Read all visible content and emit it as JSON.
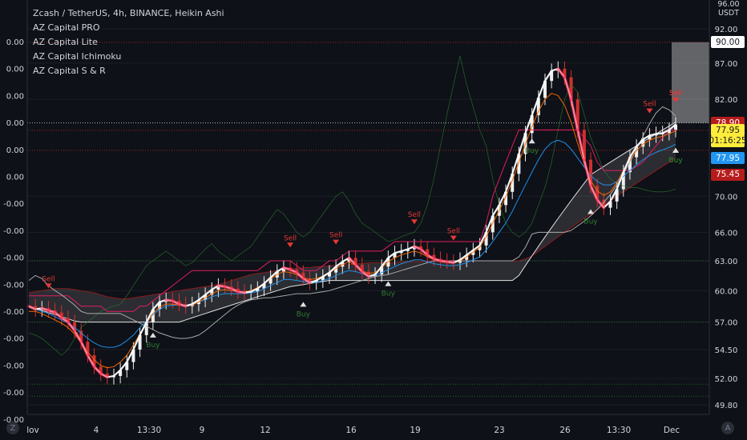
{
  "legend": {
    "title": "Zcash / TetherUS, 4h, BINANCE, Heikin Ashi",
    "indicators": [
      "AZ Capital PRO",
      "AZ Capital Lite",
      "AZ Capital Ichimoku",
      "AZ Capital S & R"
    ]
  },
  "price_unit": "USDT",
  "corner_buttons": {
    "left": "Z",
    "right": "A"
  },
  "price_tags": [
    {
      "label": "90.00",
      "value": 90.0,
      "bg": "#ffffff",
      "fg": "#131722"
    },
    {
      "label": "78.90",
      "value": 78.9,
      "bg": "#b71c1c",
      "fg": "#ffffff"
    },
    {
      "label": "77.95",
      "value": 77.95,
      "bg": "#ffeb3b",
      "fg": "#131722"
    },
    {
      "label": "01:16:25",
      "value": 76.6,
      "bg": "#ffeb3b",
      "fg": "#131722"
    },
    {
      "label": "77.95",
      "value": 74.5,
      "bg": "#2196f3",
      "fg": "#ffffff"
    },
    {
      "label": "75.45",
      "value": 72.5,
      "bg": "#b71c1c",
      "fg": "#ffffff"
    }
  ],
  "chart_data": {
    "type": "line",
    "title": "Zcash / TetherUS, 4h, BINANCE, Heikin Ashi",
    "candle_style": "Heikin Ashi candlesticks",
    "right_axis": {
      "ticks": [
        49.8,
        52.0,
        54.5,
        57.0,
        60.0,
        63.0,
        66.0,
        70.0,
        82.0,
        87.0,
        92.0
      ],
      "tick_labels": [
        "49.80",
        "52.00",
        "54.50",
        "57.00",
        "60.00",
        "63.00",
        "66.00",
        "70.00",
        "82.00",
        "87.00",
        "92.00"
      ],
      "top_partial_label": "96.00",
      "unit": "USDT",
      "scale": "log"
    },
    "left_axis": {
      "tick_labels": [
        "0.00",
        "0.00",
        "0.00",
        "0.00",
        "0.00",
        "0.00",
        "-0.00",
        "-0.00",
        "-0.00",
        "-0.00",
        "-0.00",
        "-0.00",
        "-0.00",
        "-0.00",
        "-0.00",
        "-0.00"
      ]
    },
    "x_axis": {
      "tick_labels": [
        "lov",
        "4",
        "13:30",
        "9",
        "12",
        "16",
        "19",
        "23",
        "26",
        "13:30",
        "Dec"
      ]
    },
    "support_resistance_levels": [
      90.0,
      78.9,
      77.95,
      75.45,
      63.0,
      57.0,
      51.5,
      50.5
    ],
    "signals": [
      {
        "type": "Sell",
        "x": 3
      },
      {
        "type": "Buy",
        "x": 19
      },
      {
        "type": "Sell",
        "x": 40
      },
      {
        "type": "Buy",
        "x": 42
      },
      {
        "type": "Sell",
        "x": 47
      },
      {
        "type": "Buy",
        "x": 55
      },
      {
        "type": "Sell",
        "x": 59
      },
      {
        "type": "Sell",
        "x": 65
      },
      {
        "type": "Buy",
        "x": 77
      },
      {
        "type": "Buy",
        "x": 86
      },
      {
        "type": "Sell",
        "x": 95
      },
      {
        "type": "Sell",
        "x": 101
      },
      {
        "type": "Sell",
        "x": 103
      },
      {
        "type": "Buy",
        "x": 113
      },
      {
        "type": "Sell",
        "x": 143
      },
      {
        "type": "Buy",
        "x": 157
      }
    ],
    "series": [
      {
        "name": "",
        "color": "#ffffff",
        "values": [
          58.5,
          58.2,
          58.3,
          58.1,
          57.9,
          57.4,
          57.0,
          56.2,
          55.2,
          54.0,
          53.0,
          52.4,
          52.1,
          52.2,
          52.7,
          53.4,
          54.5,
          55.8,
          57.0,
          58.2,
          58.9,
          59.1,
          59.0,
          58.7,
          58.5,
          58.7,
          59.1,
          59.6,
          60.1,
          60.5,
          60.4,
          60.2,
          59.9,
          59.8,
          59.9,
          60.2,
          60.7,
          61.3,
          61.9,
          62.3,
          62.1,
          61.8,
          61.2,
          60.8,
          61.0,
          61.4,
          61.8,
          62.4,
          62.9,
          63.3,
          62.6,
          61.9,
          61.4,
          61.6,
          62.4,
          63.3,
          63.8,
          64.0,
          64.2,
          64.5,
          64.2,
          63.6,
          63.2,
          63.0,
          62.9,
          62.8,
          63.1,
          63.6,
          64.1,
          64.6,
          66.0,
          67.8,
          69.0,
          70.5,
          72.6,
          75.0,
          77.6,
          79.9,
          82.2,
          84.5,
          85.9,
          86.2,
          85.0,
          82.0,
          78.0,
          74.3,
          71.2,
          69.6,
          68.7,
          69.4,
          70.8,
          72.8,
          74.6,
          75.9,
          76.8,
          77.3,
          77.5,
          77.6,
          78.0,
          78.7
        ]
      },
      {
        "name": "",
        "color": "#ff6d00",
        "values": [
          58.0,
          58.0,
          57.8,
          57.5,
          57.2,
          56.9,
          56.5,
          55.9,
          55.1,
          54.3,
          53.6,
          53.1,
          52.9,
          53.0,
          53.4,
          54.0,
          54.9,
          55.9,
          56.9,
          57.8,
          58.4,
          58.7,
          58.7,
          58.6,
          58.5,
          58.6,
          58.9,
          59.3,
          59.7,
          60.0,
          60.1,
          60.0,
          59.9,
          59.9,
          60.0,
          60.3,
          60.7,
          61.2,
          61.6,
          61.9,
          61.8,
          61.6,
          61.3,
          61.1,
          61.2,
          61.4,
          61.8,
          62.2,
          62.6,
          62.9,
          62.5,
          62.0,
          61.7,
          61.8,
          62.3,
          62.9,
          63.3,
          63.6,
          63.8,
          64.0,
          63.8,
          63.4,
          63.1,
          62.9,
          62.8,
          62.8,
          63.0,
          63.4,
          63.9,
          64.4,
          65.5,
          67.0,
          68.4,
          69.9,
          71.8,
          74.0,
          76.2,
          78.4,
          80.4,
          82.0,
          82.8,
          82.5,
          81.2,
          79.0,
          76.3,
          73.8,
          71.8,
          70.6,
          70.1,
          70.5,
          71.6,
          73.0,
          74.3,
          75.4,
          76.2,
          76.7,
          77.0,
          77.2,
          77.5,
          77.9
        ]
      },
      {
        "name": "",
        "color": "#2196f3",
        "values": [
          58.4,
          58.2,
          58.0,
          57.8,
          57.5,
          57.2,
          56.9,
          56.5,
          56.0,
          55.5,
          55.1,
          54.8,
          54.7,
          54.7,
          54.9,
          55.3,
          55.8,
          56.5,
          57.1,
          57.7,
          58.2,
          58.5,
          58.6,
          58.6,
          58.6,
          58.7,
          58.9,
          59.1,
          59.4,
          59.6,
          59.7,
          59.7,
          59.7,
          59.7,
          59.8,
          59.9,
          60.2,
          60.5,
          60.8,
          61.1,
          61.1,
          61.0,
          60.9,
          60.8,
          60.8,
          61.0,
          61.2,
          61.5,
          61.8,
          62.0,
          61.9,
          61.7,
          61.5,
          61.5,
          61.8,
          62.1,
          62.4,
          62.7,
          62.9,
          63.1,
          63.1,
          62.9,
          62.7,
          62.6,
          62.5,
          62.5,
          62.6,
          62.8,
          63.1,
          63.4,
          64.1,
          65.0,
          66.0,
          67.0,
          68.3,
          69.8,
          71.3,
          72.8,
          74.3,
          75.6,
          76.4,
          76.7,
          76.4,
          75.6,
          74.5,
          73.4,
          72.4,
          71.7,
          71.3,
          71.3,
          71.7,
          72.3,
          73.0,
          73.7,
          74.3,
          74.8,
          75.2,
          75.5,
          75.8,
          76.2
        ]
      },
      {
        "name": "",
        "color": "#b0b0b0",
        "values": [
          61.0,
          61.5,
          61.2,
          60.5,
          60.0,
          59.6,
          59.1,
          58.6,
          58.0,
          57.8,
          57.8,
          57.8,
          57.8,
          57.8,
          57.8,
          57.5,
          57.2,
          56.9,
          56.6,
          56.3,
          56.0,
          55.8,
          55.6,
          55.5,
          55.5,
          55.6,
          55.8,
          56.2,
          56.7,
          57.2,
          57.7,
          58.2,
          58.6,
          58.9,
          59.1,
          59.2,
          59.3,
          59.3,
          59.4,
          59.5,
          59.6,
          59.7,
          59.7,
          59.7,
          59.8,
          59.9,
          60.0,
          60.2,
          60.4,
          60.6,
          60.8,
          61.0,
          61.2,
          61.4,
          61.5,
          61.6,
          61.8,
          62.0,
          62.2,
          62.4,
          62.6,
          62.8,
          63.0,
          63.0,
          63.0,
          63.0,
          63.0,
          63.0,
          63.0,
          63.0,
          63.0,
          63.0,
          63.0,
          63.0,
          63.0,
          63.4,
          64.4,
          65.8,
          66.0,
          66.0,
          66.0,
          66.0,
          66.0,
          66.2,
          66.7,
          67.2,
          67.8,
          68.5,
          69.3,
          70.2,
          71.3,
          72.6,
          74.0,
          75.6,
          77.2,
          78.8,
          80.2,
          81.0,
          80.6,
          79.8
        ]
      },
      {
        "name": "",
        "color": "#e91e63",
        "values": [
          59.5,
          59.5,
          59.5,
          59.5,
          59.5,
          59.5,
          59.5,
          59.0,
          58.5,
          58.5,
          58.5,
          58.5,
          58.0,
          58.0,
          58.0,
          58.0,
          58.0,
          58.5,
          58.5,
          59.0,
          59.5,
          60.0,
          60.5,
          61.0,
          61.5,
          62.0,
          62.0,
          62.0,
          62.0,
          62.0,
          62.0,
          62.0,
          62.0,
          62.0,
          62.0,
          62.0,
          62.5,
          63.0,
          63.0,
          63.0,
          63.0,
          62.5,
          62.0,
          62.0,
          62.0,
          62.5,
          63.0,
          63.0,
          63.5,
          64.0,
          64.0,
          64.0,
          64.0,
          64.0,
          64.0,
          64.5,
          65.0,
          65.0,
          65.0,
          65.0,
          65.0,
          65.0,
          65.0,
          65.0,
          65.0,
          65.0,
          65.0,
          65.0,
          65.0,
          65.0,
          67.0,
          70.0,
          72.0,
          74.0,
          76.0,
          78.0,
          78.0,
          78.0,
          78.0,
          78.0,
          78.0,
          78.0,
          78.0,
          78.0,
          78.0,
          77.0,
          76.0,
          74.0,
          73.0,
          73.0,
          73.0,
          73.0,
          73.0,
          73.5,
          74.0,
          75.0,
          76.0,
          77.0,
          78.0,
          78.0
        ]
      },
      {
        "name": "",
        "color": "#2e7d32",
        "values": [
          56.0,
          55.8,
          55.5,
          55.0,
          54.5,
          54.0,
          54.5,
          55.5,
          56.5,
          57.0,
          57.5,
          58.0,
          58.3,
          58.5,
          58.7,
          59.5,
          60.5,
          61.5,
          62.5,
          63.0,
          63.5,
          64.0,
          63.5,
          63.0,
          62.5,
          62.8,
          63.5,
          64.2,
          64.8,
          64.0,
          63.5,
          63.0,
          63.5,
          64.0,
          64.5,
          65.5,
          66.5,
          67.5,
          68.5,
          68.0,
          67.0,
          66.0,
          65.5,
          66.0,
          67.0,
          68.0,
          69.0,
          70.0,
          70.5,
          69.5,
          68.0,
          67.0,
          66.5,
          66.0,
          65.5,
          65.0,
          65.2,
          65.5,
          65.8,
          66.0,
          67.0,
          69.0,
          72.0,
          76.0,
          80.0,
          84.0,
          88.0,
          84.0,
          81.0,
          78.0,
          76.0,
          72.0,
          69.0,
          67.0,
          66.0,
          65.5,
          66.0,
          67.0,
          69.0,
          71.0,
          74.0,
          78.0,
          82.0,
          84.0,
          83.0,
          80.0,
          77.0,
          75.0,
          73.0,
          72.0,
          71.5,
          71.2,
          71.0,
          71.0,
          70.8,
          70.6,
          70.5,
          70.5,
          70.6,
          70.8
        ]
      }
    ],
    "ichimoku_cloud": {
      "span_a": [
        59.8,
        59.9,
        60.0,
        60.1,
        60.2,
        60.2,
        60.2,
        60.1,
        60.0,
        59.9,
        59.8,
        59.6,
        59.4,
        59.3,
        59.2,
        59.2,
        59.3,
        59.4,
        59.5,
        59.6,
        59.7,
        59.8,
        59.9,
        60.0,
        60.1,
        60.2,
        60.3,
        60.4,
        60.5,
        60.6,
        60.8,
        61.0,
        61.2,
        61.4,
        61.6,
        61.7,
        61.8,
        61.9,
        62.0,
        62.1,
        62.2,
        62.2,
        62.3,
        62.3,
        62.4,
        62.4,
        62.5,
        62.5,
        62.6,
        62.6,
        62.7,
        62.7,
        62.8,
        62.8,
        62.8,
        62.8,
        62.8,
        62.9,
        62.9,
        62.9,
        62.9,
        63.0,
        63.0,
        63.0,
        63.0,
        63.0,
        63.0,
        63.0,
        63.0,
        63.0,
        63.0,
        63.0,
        63.0,
        63.0,
        63.0,
        63.0,
        63.2,
        63.5,
        64.0,
        64.5,
        65.0,
        65.5,
        66.0,
        66.5,
        67.0,
        67.5,
        68.0,
        68.5,
        69.0,
        69.5,
        70.0,
        70.5,
        71.0,
        71.5,
        72.0,
        72.5,
        73.0,
        73.5,
        74.0,
        74.5
      ],
      "span_b": [
        58.5,
        58.3,
        58.1,
        57.9,
        57.7,
        57.5,
        57.3,
        57.1,
        57.0,
        57.0,
        57.0,
        57.0,
        57.0,
        57.0,
        57.0,
        57.0,
        57.0,
        57.0,
        57.0,
        57.0,
        57.0,
        57.0,
        57.0,
        57.0,
        57.2,
        57.4,
        57.6,
        57.8,
        58.0,
        58.2,
        58.4,
        58.6,
        58.8,
        59.0,
        59.2,
        59.4,
        59.6,
        59.8,
        60.0,
        60.2,
        60.4,
        60.5,
        60.6,
        60.7,
        60.8,
        60.9,
        61.0,
        61.0,
        61.0,
        61.0,
        61.0,
        61.0,
        61.0,
        61.0,
        61.0,
        61.0,
        61.0,
        61.0,
        61.0,
        61.0,
        61.0,
        61.0,
        61.0,
        61.0,
        61.0,
        61.0,
        61.0,
        61.0,
        61.0,
        61.0,
        61.0,
        61.0,
        61.0,
        61.0,
        61.0,
        61.5,
        62.5,
        63.5,
        64.5,
        65.5,
        66.5,
        67.5,
        68.5,
        69.5,
        70.5,
        71.5,
        72.5,
        73.0,
        73.5,
        74.0,
        74.5,
        75.0,
        75.5,
        76.0,
        76.5,
        77.0,
        77.5,
        78.0,
        78.5,
        79.0
      ]
    },
    "projection_box": {
      "x_start": 100,
      "x_end": 105,
      "y_top": 90.0,
      "y_bottom": 78.9
    }
  }
}
